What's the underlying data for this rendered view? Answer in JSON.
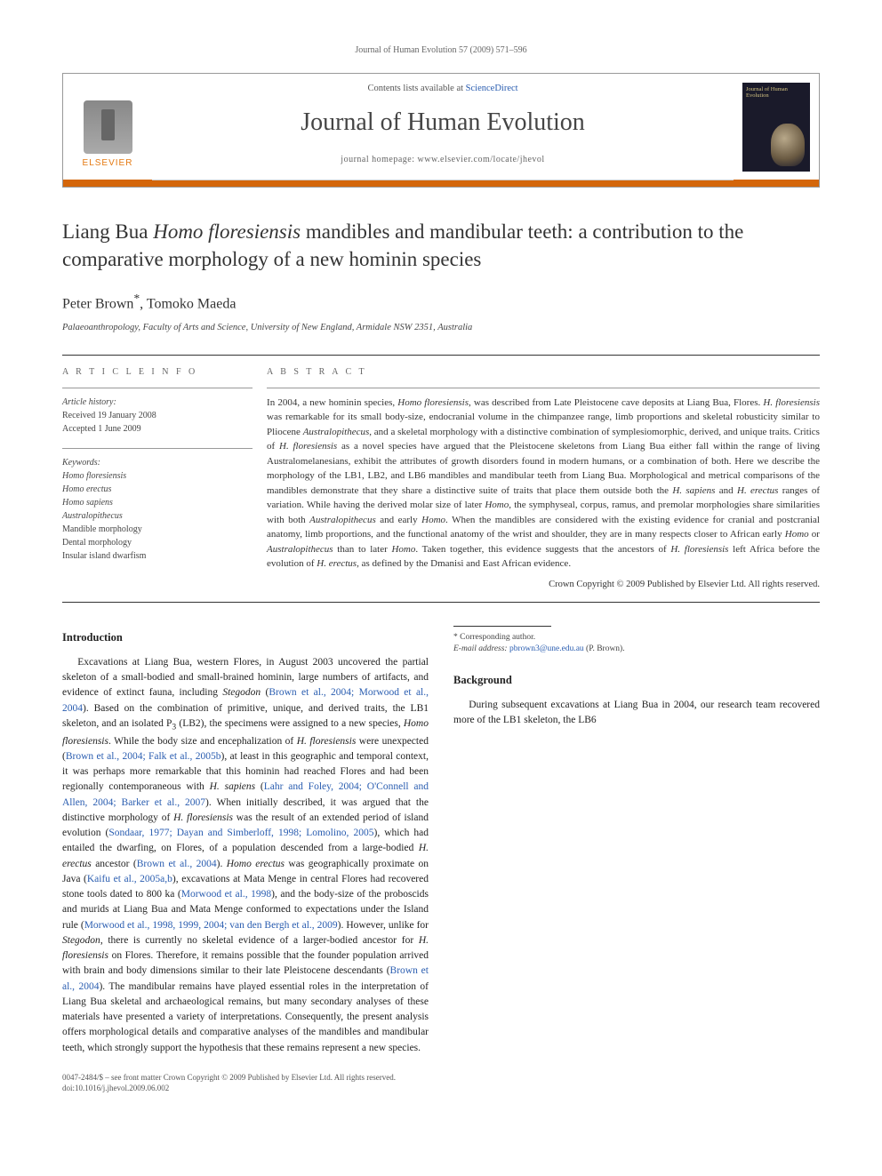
{
  "runningHead": {
    "citation": "Journal of Human Evolution 57 (2009) 571–596",
    "pageNumber": ""
  },
  "masthead": {
    "publisherLabel": "ELSEVIER",
    "contentsPrefix": "Contents lists available at ",
    "contentsLink": "ScienceDirect",
    "journalName": "Journal of Human Evolution",
    "homepagePrefix": "journal homepage: ",
    "homepageUrl": "www.elsevier.com/locate/jhevol",
    "coverTitle": "Journal of Human Evolution"
  },
  "article": {
    "titleHtml": "Liang Bua <em>Homo floresiensis</em> mandibles and mandibular teeth: a contribution to the comparative morphology of a new hominin species",
    "authorsHtml": "Peter Brown<sup>*</sup>, Tomoko Maeda",
    "affiliation": "Palaeoanthropology, Faculty of Arts and Science, University of New England, Armidale NSW 2351, Australia"
  },
  "articleInfo": {
    "sectionLabel": "A R T I C L E   I N F O",
    "historyHead": "Article history:",
    "received": "Received 19 January 2008",
    "accepted": "Accepted 1 June 2009",
    "keywordsHead": "Keywords:",
    "keywords": [
      "Homo floresiensis",
      "Homo erectus",
      "Homo sapiens",
      "Australopithecus",
      "Mandible morphology",
      "Dental morphology",
      "Insular island dwarfism"
    ]
  },
  "abstract": {
    "sectionLabel": "A B S T R A C T",
    "bodyHtml": "In 2004, a new hominin species, <em>Homo floresiensis</em>, was described from Late Pleistocene cave deposits at Liang Bua, Flores. <em>H. floresiensis</em> was remarkable for its small body-size, endocranial volume in the chimpanzee range, limb proportions and skeletal robusticity similar to Pliocene <em>Australopithecus</em>, and a skeletal morphology with a distinctive combination of symplesiomorphic, derived, and unique traits. Critics of <em>H. floresiensis</em> as a novel species have argued that the Pleistocene skeletons from Liang Bua either fall within the range of living Australomelanesians, exhibit the attributes of growth disorders found in modern humans, or a combination of both. Here we describe the morphology of the LB1, LB2, and LB6 mandibles and mandibular teeth from Liang Bua. Morphological and metrical comparisons of the mandibles demonstrate that they share a distinctive suite of traits that place them outside both the <em>H. sapiens</em> and <em>H. erectus</em> ranges of variation. While having the derived molar size of later <em>Homo</em>, the symphyseal, corpus, ramus, and premolar morphologies share similarities with both <em>Australopithecus</em> and early <em>Homo</em>. When the mandibles are considered with the existing evidence for cranial and postcranial anatomy, limb proportions, and the functional anatomy of the wrist and shoulder, they are in many respects closer to African early <em>Homo</em> or <em>Australopithecus</em> than to later <em>Homo</em>. Taken together, this evidence suggests that the ancestors of <em>H. floresiensis</em> left Africa before the evolution of <em>H. erectus</em>, as defined by the Dmanisi and East African evidence.",
    "copyright": "Crown Copyright © 2009 Published by Elsevier Ltd. All rights reserved."
  },
  "body": {
    "introHead": "Introduction",
    "introHtml": "Excavations at Liang Bua, western Flores, in August 2003 uncovered the partial skeleton of a small-bodied and small-brained hominin, large numbers of artifacts, and evidence of extinct fauna, including <em>Stegodon</em> (<span class=\"cite\">Brown et al., 2004; Morwood et al., 2004</span>). Based on the combination of primitive, unique, and derived traits, the LB1 skeleton, and an isolated P<sub>3</sub> (LB2), the specimens were assigned to a new species, <em>Homo floresiensis</em>. While the body size and encephalization of <em>H. floresiensis</em> were unexpected (<span class=\"cite\">Brown et al., 2004; Falk et al., 2005b</span>), at least in this geographic and temporal context, it was perhaps more remarkable that this hominin had reached Flores and had been regionally contemporaneous with <em>H. sapiens</em> (<span class=\"cite\">Lahr and Foley, 2004; O'Connell and Allen, 2004; Barker et al., 2007</span>). When initially described, it was argued that the distinctive morphology of <em>H. floresiensis</em> was the result of an extended period of island evolution (<span class=\"cite\">Sondaar, 1977; Dayan and Simberloff, 1998; Lomolino, 2005</span>), which had entailed the dwarfing, on Flores, of a population descended from a large-bodied <em>H. erectus</em> ancestor (<span class=\"cite\">Brown et al., 2004</span>). <em>Homo erectus</em> was geographically proximate on Java (<span class=\"cite\">Kaifu et al., 2005a,b</span>), excavations at Mata Menge in central Flores had recovered stone tools dated to 800 ka (<span class=\"cite\">Morwood et al., 1998</span>), and the body-size of the proboscids and murids at Liang Bua and Mata Menge conformed to expectations under the Island rule (<span class=\"cite\">Morwood et al., 1998, 1999, 2004; van den Bergh et al., 2009</span>). However, unlike for <em>Stegodon</em>, there is currently no skeletal evidence of a larger-bodied ancestor for <em>H. floresiensis</em> on Flores. Therefore, it remains possible that the founder population arrived with brain and body dimensions similar to their late Pleistocene descendants (<span class=\"cite\">Brown et al., 2004</span>). The mandibular remains have played essential roles in the interpretation of Liang Bua skeletal and archaeological remains, but many secondary analyses of these materials have presented a variety of interpretations. Consequently, the present analysis offers morphological details and comparative analyses of the mandibles and mandibular teeth, which strongly support the hypothesis that these remains represent a new species.",
    "backgroundHead": "Background",
    "backgroundHtml": "During subsequent excavations at Liang Bua in 2004, our research team recovered more of the LB1 skeleton, the LB6"
  },
  "footnotes": {
    "corresponding": "* Corresponding author.",
    "emailLabel": "E-mail address: ",
    "email": "pbrown3@une.edu.au",
    "emailSuffix": " (P. Brown)."
  },
  "footer": {
    "line1": "0047-2484/$ – see front matter Crown Copyright © 2009 Published by Elsevier Ltd. All rights reserved.",
    "line2": "doi:10.1016/j.jhevol.2009.06.002"
  },
  "colors": {
    "accentOrange": "#d4660a",
    "linkBlue": "#2a5db0",
    "ruleGray": "#333333"
  }
}
